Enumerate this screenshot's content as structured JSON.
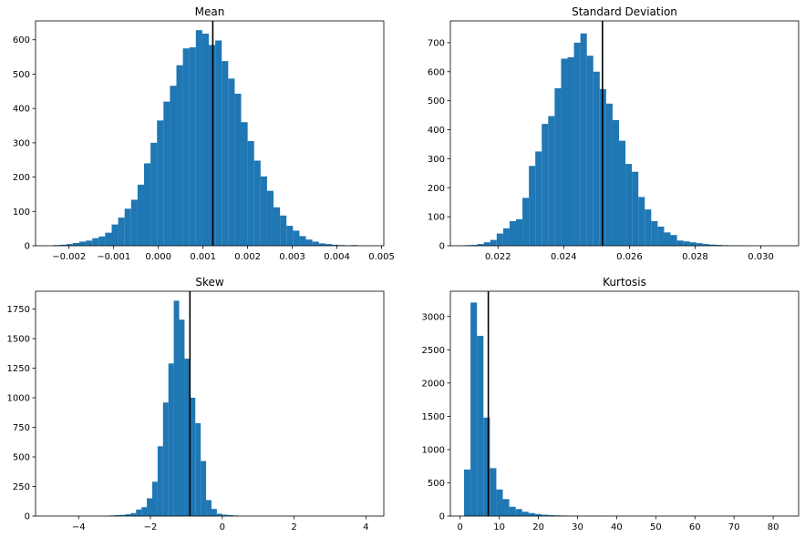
{
  "chart_data": [
    {
      "type": "bar",
      "title": "Mean",
      "xlabel": "",
      "ylabel": "",
      "xlim": [
        -0.00275,
        0.00505
      ],
      "ylim": [
        0,
        655
      ],
      "xticks": [
        -0.002,
        -0.001,
        0.0,
        0.001,
        0.002,
        0.003,
        0.004,
        0.005
      ],
      "xtick_labels": [
        "−0.002",
        "−0.001",
        "0.000",
        "0.001",
        "0.002",
        "0.003",
        "0.004",
        "0.005"
      ],
      "yticks": [
        0,
        100,
        200,
        300,
        400,
        500,
        600
      ],
      "ytick_labels": [
        "0",
        "100",
        "200",
        "300",
        "400",
        "500",
        "600"
      ],
      "bin_start": -0.00235,
      "bin_width": 0.000145,
      "counts": [
        2,
        3,
        5,
        8,
        12,
        15,
        22,
        27,
        38,
        62,
        82,
        108,
        134,
        178,
        240,
        300,
        365,
        420,
        466,
        526,
        575,
        578,
        628,
        618,
        585,
        598,
        538,
        487,
        443,
        360,
        305,
        248,
        202,
        160,
        112,
        88,
        58,
        44,
        28,
        18,
        12,
        7,
        5,
        3,
        2,
        1,
        2
      ],
      "color": "#1f77b4",
      "vline": {
        "x": 0.00122,
        "color": "#000000"
      },
      "grid": false
    },
    {
      "type": "bar",
      "title": "Standard Deviation",
      "xlabel": "",
      "ylabel": "",
      "xlim": [
        0.02055,
        0.03115
      ],
      "ylim": [
        0,
        775
      ],
      "xticks": [
        0.022,
        0.024,
        0.026,
        0.028,
        0.03
      ],
      "xtick_labels": [
        "0.022",
        "0.024",
        "0.026",
        "0.028",
        "0.030"
      ],
      "yticks": [
        0,
        100,
        200,
        300,
        400,
        500,
        600,
        700
      ],
      "ytick_labels": [
        "0",
        "100",
        "200",
        "300",
        "400",
        "500",
        "600",
        "700"
      ],
      "bin_start": 0.02098,
      "bin_width": 0.000196,
      "counts": [
        2,
        3,
        6,
        12,
        20,
        42,
        60,
        85,
        91,
        165,
        275,
        325,
        420,
        447,
        543,
        645,
        650,
        700,
        732,
        655,
        600,
        540,
        490,
        433,
        362,
        282,
        255,
        168,
        125,
        85,
        66,
        46,
        37,
        18,
        15,
        12,
        9,
        6,
        4,
        3,
        2,
        1,
        1,
        1
      ],
      "color": "#1f77b4",
      "vline": {
        "x": 0.02518,
        "color": "#000000"
      },
      "grid": false
    },
    {
      "type": "bar",
      "title": "Skew",
      "xlabel": "",
      "ylabel": "",
      "xlim": [
        -5.2,
        4.5
      ],
      "ylim": [
        0,
        1900
      ],
      "xticks": [
        -4,
        -2,
        0,
        2,
        4
      ],
      "xtick_labels": [
        "−4",
        "−2",
        "0",
        "2",
        "4"
      ],
      "yticks": [
        0,
        250,
        500,
        750,
        1000,
        1250,
        1500,
        1750
      ],
      "ytick_labels": [
        "0",
        "250",
        "500",
        "750",
        "1000",
        "1250",
        "1500",
        "1750"
      ],
      "bin_start": -3.3,
      "bin_width": 0.15,
      "counts": [
        2,
        5,
        8,
        10,
        15,
        25,
        55,
        75,
        150,
        290,
        590,
        960,
        1290,
        1820,
        1660,
        1330,
        1000,
        785,
        465,
        135,
        60,
        20,
        12,
        8,
        5
      ],
      "color": "#1f77b4",
      "vline": {
        "x": -0.9,
        "color": "#000000"
      },
      "grid": false
    },
    {
      "type": "bar",
      "title": "Kurtosis",
      "xlabel": "",
      "ylabel": "",
      "xlim": [
        -2.5,
        86.5
      ],
      "ylim": [
        0,
        3380
      ],
      "xticks": [
        0,
        10,
        20,
        30,
        40,
        50,
        60,
        70,
        80
      ],
      "xtick_labels": [
        "0",
        "10",
        "20",
        "30",
        "40",
        "50",
        "60",
        "70",
        "80"
      ],
      "yticks": [
        0,
        500,
        1000,
        1500,
        2000,
        2500,
        3000
      ],
      "ytick_labels": [
        "0",
        "500",
        "1000",
        "1500",
        "2000",
        "2500",
        "3000"
      ],
      "bin_start": 1.0,
      "bin_width": 1.65,
      "counts": [
        700,
        3210,
        2710,
        1480,
        720,
        400,
        255,
        140,
        105,
        65,
        45,
        30,
        20,
        14,
        10,
        8,
        6,
        4,
        3,
        3,
        2,
        2,
        1,
        1,
        1,
        1,
        1,
        1,
        0,
        0,
        0,
        0,
        0,
        0,
        0,
        0,
        0,
        0,
        0,
        0,
        0,
        0,
        0,
        0,
        0,
        0,
        0,
        0,
        0
      ],
      "color": "#1f77b4",
      "vline": {
        "x": 7.2,
        "color": "#000000"
      },
      "grid": false
    }
  ]
}
